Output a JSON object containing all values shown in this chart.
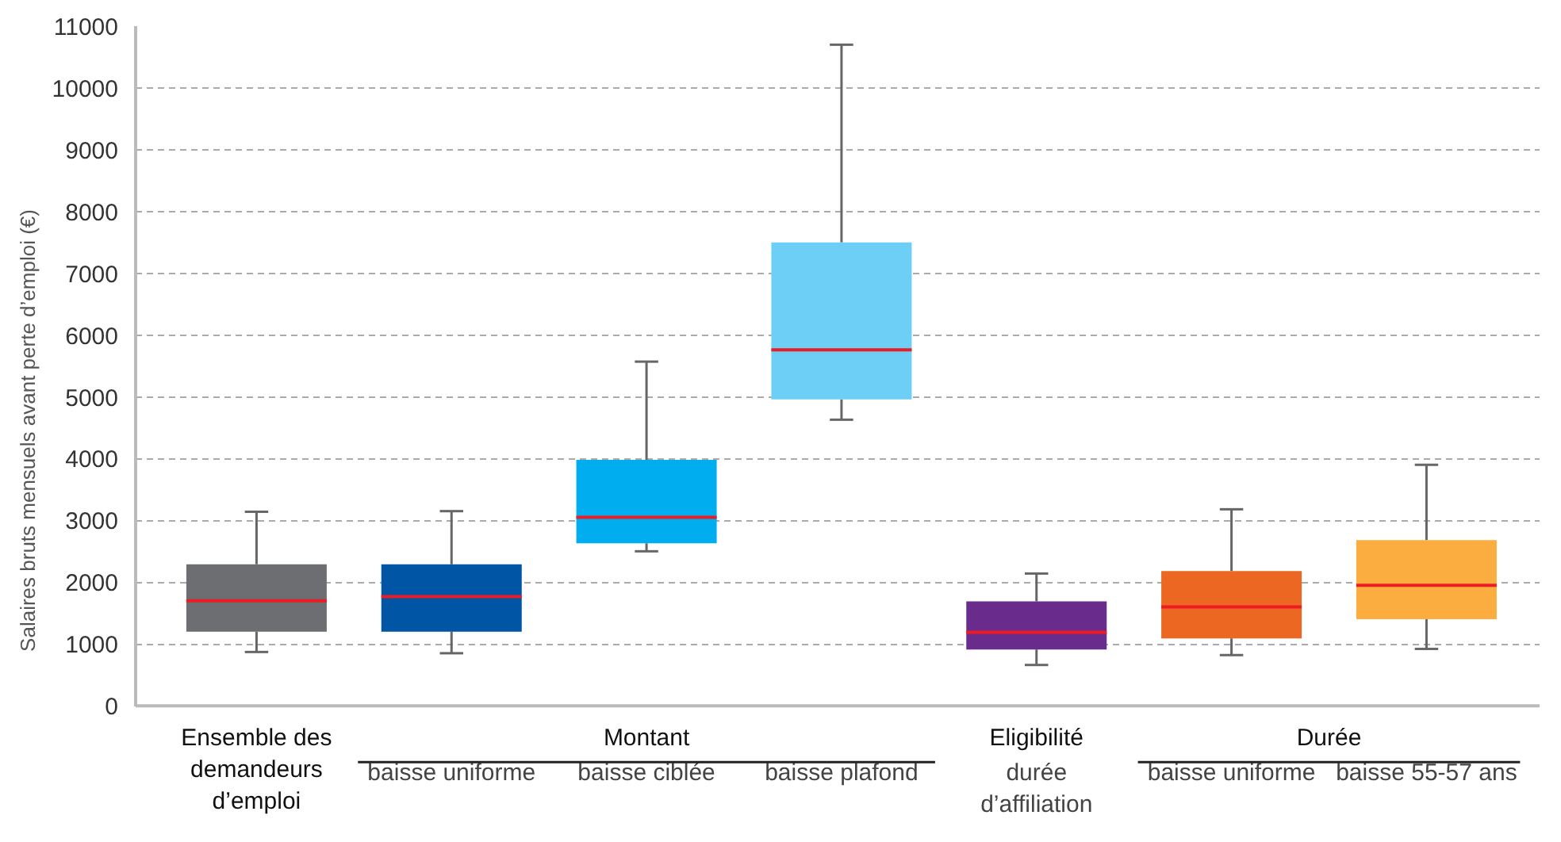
{
  "chart_data": {
    "type": "box",
    "ylabel": "Salaires bruts mensuels avant perte d’emploi (€)",
    "categories": [
      "Ensemble des\ndemandeurs\nd’emploi",
      "baisse uniforme",
      "baisse ciblée",
      "baisse plafond",
      "durée\nd’affiliation",
      "baisse uniforme",
      "baisse 55-57 ans"
    ],
    "boxes": [
      {
        "low": 870,
        "q1": 1200,
        "median": 1700,
        "q3": 2290,
        "high": 3140
      },
      {
        "low": 850,
        "q1": 1200,
        "median": 1765,
        "q3": 2290,
        "high": 3150
      },
      {
        "low": 2500,
        "q1": 2630,
        "median": 3050,
        "q3": 3980,
        "high": 5570
      },
      {
        "low": 4630,
        "q1": 4960,
        "median": 5760,
        "q3": 7500,
        "high": 10700
      },
      {
        "low": 660,
        "q1": 910,
        "median": 1190,
        "q3": 1690,
        "high": 2140
      },
      {
        "low": 820,
        "q1": 1090,
        "median": 1600,
        "q3": 2180,
        "high": 3180
      },
      {
        "low": 920,
        "q1": 1400,
        "median": 1950,
        "q3": 2680,
        "high": 3900
      }
    ],
    "colors": [
      "#6d6e71",
      "#0055a4",
      "#00aeef",
      "#6dcff6",
      "#692b8c",
      "#ec6721",
      "#fbad3f"
    ],
    "annotations": [
      "Montant",
      "Eligibilité",
      "Durée"
    ],
    "ylim": [
      0,
      11000
    ],
    "yticks": [
      0,
      1000,
      2000,
      3000,
      4000,
      5000,
      6000,
      7000,
      8000,
      9000,
      10000,
      11000
    ],
    "grid": "y"
  }
}
